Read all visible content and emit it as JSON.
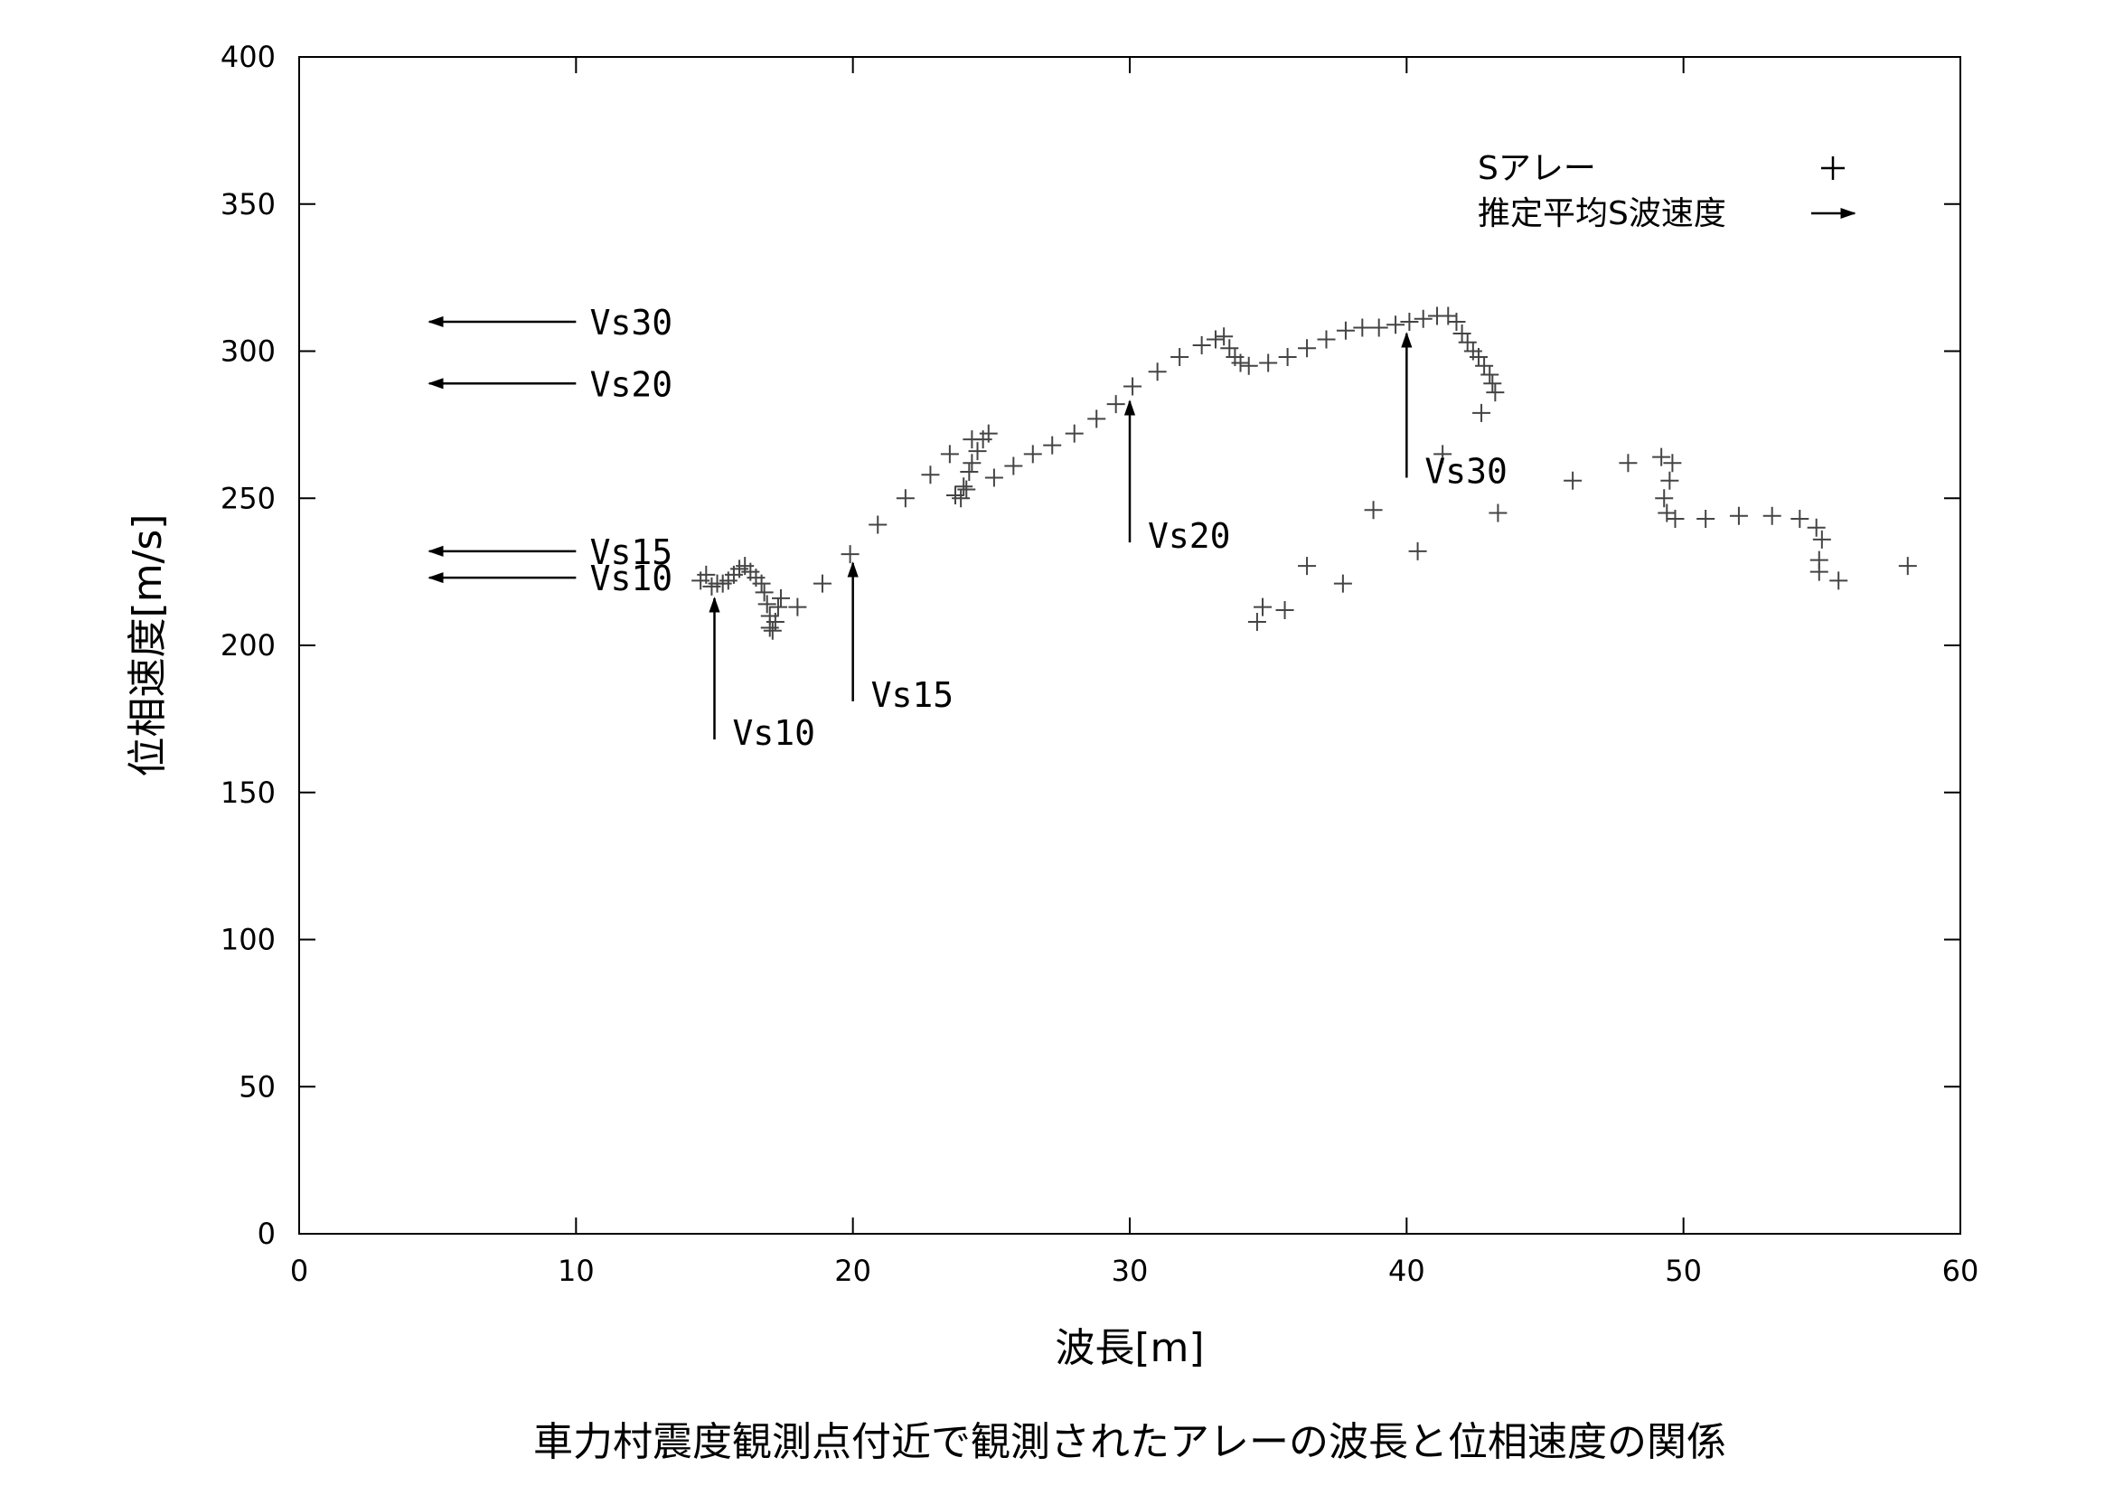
{
  "chart_data": {
    "type": "scatter",
    "title": "車力村震度観測点付近で観測されたアレーの波長と位相速度の関係",
    "xlabel": "波長[m]",
    "ylabel": "位相速度[m/s]",
    "xlim": [
      0,
      60
    ],
    "ylim": [
      0,
      400
    ],
    "xticks": [
      "0",
      "10",
      "20",
      "30",
      "40",
      "50",
      "60"
    ],
    "yticks": [
      "0",
      "50",
      "100",
      "150",
      "200",
      "250",
      "300",
      "350",
      "400"
    ],
    "grid": false,
    "legend_position": "top-right",
    "legend": [
      {
        "label": "Sアレー",
        "symbol": "+"
      },
      {
        "label": "推定平均S波速度",
        "symbol": "→"
      }
    ],
    "series": [
      {
        "name": "Sアレー",
        "marker": "+",
        "points": [
          [
            14.5,
            222
          ],
          [
            14.7,
            224
          ],
          [
            14.9,
            220
          ],
          [
            15.1,
            221
          ],
          [
            15.3,
            221
          ],
          [
            15.5,
            222
          ],
          [
            15.7,
            224
          ],
          [
            15.9,
            226
          ],
          [
            16.1,
            227
          ],
          [
            16.3,
            225
          ],
          [
            16.5,
            223
          ],
          [
            16.7,
            221
          ],
          [
            16.8,
            218
          ],
          [
            16.9,
            214
          ],
          [
            17.0,
            210
          ],
          [
            17.0,
            206
          ],
          [
            17.1,
            205
          ],
          [
            17.2,
            208
          ],
          [
            17.3,
            213
          ],
          [
            17.4,
            216
          ],
          [
            18.0,
            213
          ],
          [
            18.9,
            221
          ],
          [
            19.9,
            231
          ],
          [
            20.9,
            241
          ],
          [
            21.9,
            250
          ],
          [
            22.8,
            258
          ],
          [
            23.5,
            265
          ],
          [
            23.7,
            251
          ],
          [
            23.9,
            250
          ],
          [
            24.0,
            254
          ],
          [
            24.2,
            259
          ],
          [
            24.3,
            262
          ],
          [
            24.5,
            266
          ],
          [
            24.7,
            270
          ],
          [
            24.9,
            272
          ],
          [
            24.3,
            270
          ],
          [
            24.1,
            253
          ],
          [
            25.1,
            257
          ],
          [
            25.8,
            261
          ],
          [
            26.5,
            265
          ],
          [
            27.2,
            268
          ],
          [
            28.0,
            272
          ],
          [
            28.8,
            277
          ],
          [
            29.5,
            282
          ],
          [
            30.1,
            288
          ],
          [
            31.0,
            293
          ],
          [
            31.8,
            298
          ],
          [
            32.6,
            302
          ],
          [
            33.1,
            304
          ],
          [
            33.4,
            305
          ],
          [
            33.6,
            301
          ],
          [
            33.8,
            298
          ],
          [
            34.0,
            296
          ],
          [
            34.3,
            295
          ],
          [
            35.0,
            296
          ],
          [
            35.7,
            298
          ],
          [
            36.4,
            301
          ],
          [
            37.1,
            304
          ],
          [
            37.8,
            307
          ],
          [
            38.4,
            308
          ],
          [
            39.0,
            308
          ],
          [
            39.6,
            309
          ],
          [
            40.1,
            310
          ],
          [
            40.6,
            311
          ],
          [
            41.1,
            312
          ],
          [
            41.5,
            312
          ],
          [
            41.8,
            310
          ],
          [
            42.0,
            306
          ],
          [
            42.2,
            303
          ],
          [
            42.4,
            300
          ],
          [
            42.6,
            298
          ],
          [
            42.8,
            295
          ],
          [
            43.0,
            292
          ],
          [
            43.1,
            289
          ],
          [
            43.2,
            286
          ],
          [
            42.7,
            279
          ],
          [
            41.3,
            265
          ],
          [
            43.3,
            245
          ],
          [
            38.8,
            246
          ],
          [
            40.4,
            232
          ],
          [
            36.4,
            227
          ],
          [
            37.7,
            221
          ],
          [
            35.6,
            212
          ],
          [
            34.8,
            213
          ],
          [
            34.6,
            208
          ],
          [
            46.0,
            256
          ],
          [
            48.0,
            262
          ],
          [
            49.2,
            264
          ],
          [
            49.6,
            262
          ],
          [
            49.5,
            256
          ],
          [
            49.3,
            250
          ],
          [
            49.4,
            245
          ],
          [
            49.7,
            243
          ],
          [
            50.8,
            243
          ],
          [
            52.0,
            244
          ],
          [
            53.2,
            244
          ],
          [
            54.2,
            243
          ],
          [
            54.8,
            240
          ],
          [
            55.0,
            236
          ],
          [
            54.9,
            229
          ],
          [
            54.9,
            225
          ],
          [
            55.6,
            222
          ],
          [
            58.1,
            227
          ]
        ]
      }
    ],
    "arrows_horizontal": [
      {
        "label": "Vs30",
        "value": 310
      },
      {
        "label": "Vs20",
        "value": 289
      },
      {
        "label": "Vs15",
        "value": 232
      },
      {
        "label": "Vs10",
        "value": 223
      }
    ],
    "arrows_vertical": [
      {
        "label": "Vs10",
        "value": 15,
        "y_from": 168,
        "y_to": 216
      },
      {
        "label": "Vs15",
        "value": 20,
        "y_from": 181,
        "y_to": 228
      },
      {
        "label": "Vs20",
        "value": 30,
        "y_from": 235,
        "y_to": 283
      },
      {
        "label": "Vs30",
        "value": 40,
        "y_from": 257,
        "y_to": 306
      }
    ]
  }
}
